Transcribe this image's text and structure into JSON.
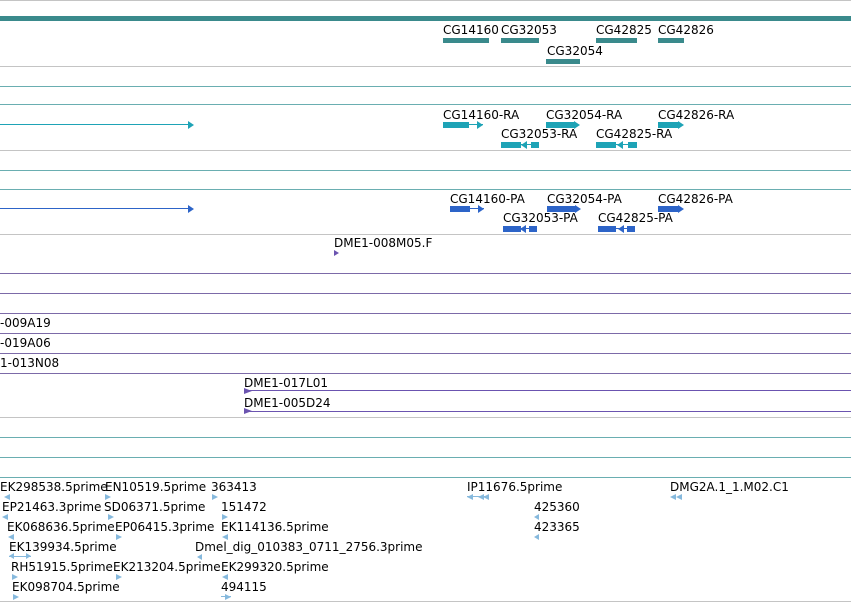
{
  "colors": {
    "divider_gray": "#c4c4c4",
    "divider_teal": "#6aaeb1",
    "divider_purple": "#7c6aa8",
    "gene": "#3a8a8c",
    "transcript": "#1ea3b6",
    "protein": "#2d64c8",
    "clone": "#6b54b0",
    "est": "#86b9dd"
  },
  "genes": [
    {
      "label": "CG14160",
      "strand": "+"
    },
    {
      "label": "CG32053",
      "strand": "+"
    },
    {
      "label": "CG32054",
      "strand": "+"
    },
    {
      "label": "CG42825",
      "strand": "+"
    },
    {
      "label": "CG42826",
      "strand": "+"
    }
  ],
  "transcripts": [
    {
      "label": "CG14160-RA"
    },
    {
      "label": "CG32054-RA"
    },
    {
      "label": "CG42826-RA"
    },
    {
      "label": "CG32053-RA"
    },
    {
      "label": "CG42825-RA"
    }
  ],
  "proteins": [
    {
      "label": "CG14160-PA"
    },
    {
      "label": "CG32054-PA"
    },
    {
      "label": "CG42826-PA"
    },
    {
      "label": "CG32053-PA"
    },
    {
      "label": "CG42825-PA"
    }
  ],
  "clones": [
    {
      "label": "DME1-008M05.F"
    },
    {
      "label": "-009A19"
    },
    {
      "label": "-019A06"
    },
    {
      "label": "1-013N08"
    },
    {
      "label": "DME1-017L01"
    },
    {
      "label": "DME1-005D24"
    }
  ],
  "ests": [
    {
      "label": "EK298538.5prime"
    },
    {
      "label": "EN10519.5prime"
    },
    {
      "label": "363413"
    },
    {
      "label": "IP11676.5prime"
    },
    {
      "label": "DMG2A.1_1.M02.C1"
    },
    {
      "label": "EP21463.3prime"
    },
    {
      "label": "SD06371.5prime"
    },
    {
      "label": "151472"
    },
    {
      "label": "425360"
    },
    {
      "label": "EK068636.5prime"
    },
    {
      "label": "EP06415.3prime"
    },
    {
      "label": "EK114136.5prime"
    },
    {
      "label": "423365"
    },
    {
      "label": "EK139934.5prime"
    },
    {
      "label": "Dmel_dig_010383_0711_2756.3prime"
    },
    {
      "label": "RH51915.5prime"
    },
    {
      "label": "EK213204.5prime"
    },
    {
      "label": "EK299320.5prime"
    },
    {
      "label": "EK098704.5prime"
    },
    {
      "label": "494115"
    }
  ]
}
